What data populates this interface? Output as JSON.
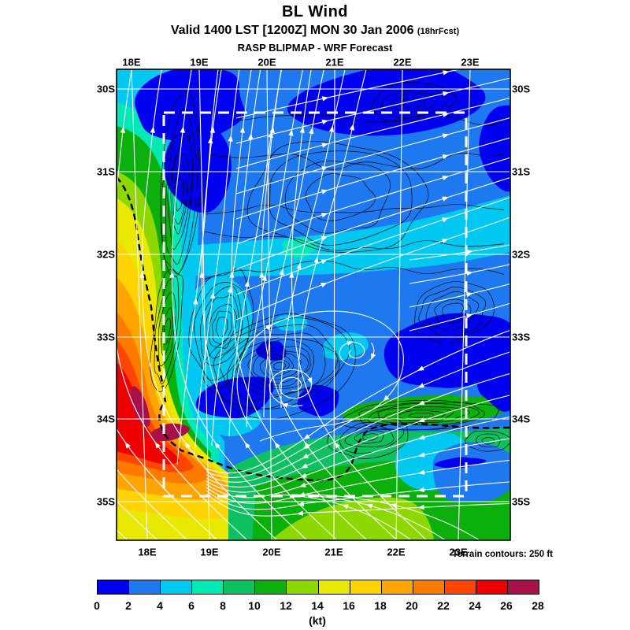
{
  "title": "BL Wind",
  "valid_line": {
    "text": "Valid 1400 LST [1200Z] MON 30 Jan 2006",
    "fcst_suffix": "(18hrFcst)"
  },
  "product_line": "RASP BLIPMAP - WRF Forecast",
  "terrain_note": "Terrain contours: 250 ft",
  "axes": {
    "lon_labels": [
      "18E",
      "19E",
      "20E",
      "21E",
      "22E",
      "23E"
    ],
    "lat_labels": [
      "30S",
      "31S",
      "32S",
      "33S",
      "34S",
      "35S"
    ]
  },
  "colorbar": {
    "unit": "(kt)",
    "tick_labels": [
      "0",
      "2",
      "4",
      "6",
      "8",
      "10",
      "12",
      "14",
      "16",
      "18",
      "20",
      "22",
      "24",
      "26",
      "28"
    ],
    "colors": [
      "#0000f0",
      "#1e78f0",
      "#00c8f0",
      "#00e8b4",
      "#0fc060",
      "#0cb00c",
      "#8cd800",
      "#e8e800",
      "#ffd300",
      "#ffa400",
      "#ff7b00",
      "#ff4600",
      "#ee0000",
      "#a81048"
    ]
  },
  "map_colors": {
    "streamlines": "#ffffff",
    "terrain_contours": "#000000",
    "coastline": "#000000",
    "grid": "#ffffff",
    "domain_box": "#ffffff",
    "frame": "#000000"
  }
}
